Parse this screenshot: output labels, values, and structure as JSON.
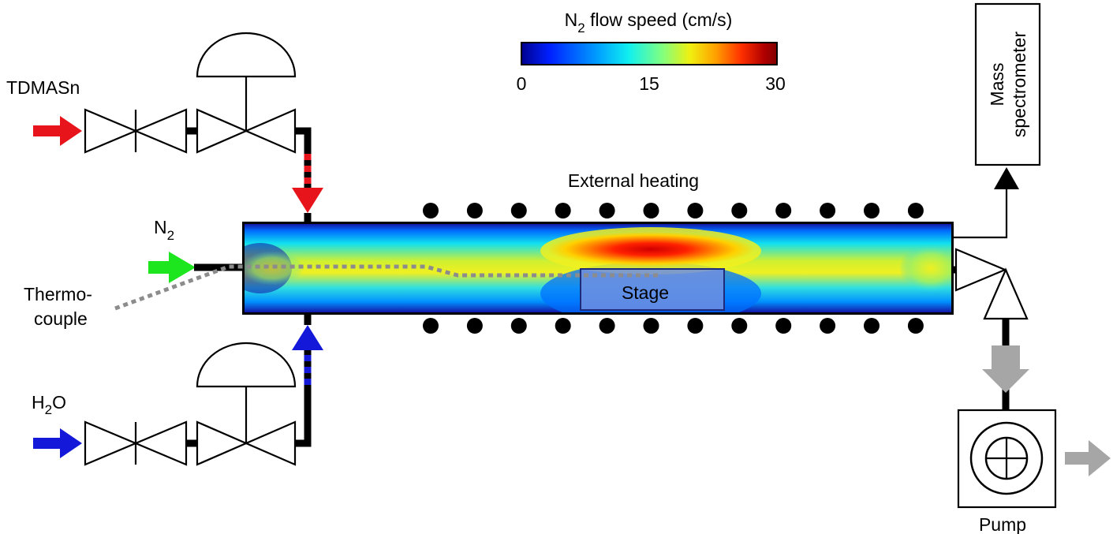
{
  "colorbar": {
    "title_main": "N",
    "title_sub": "2",
    "title_rest": " flow speed (cm/s)",
    "ticks": [
      "0",
      "15",
      "30"
    ],
    "colormap": [
      "#00008f",
      "#0020ff",
      "#00a0ff",
      "#10f0f0",
      "#80ff80",
      "#f0f010",
      "#ffa000",
      "#ff3000",
      "#b00000",
      "#800000"
    ]
  },
  "labels": {
    "tdmasn": "TDMASn",
    "n2_main": "N",
    "n2_sub": "2",
    "h2o_h": "H",
    "h2o_sub": "2",
    "h2o_o": "O",
    "thermo_line1": "Thermo-",
    "thermo_line2": "couple",
    "external_heating": "External heating",
    "stage": "Stage",
    "mass_line1": "Mass",
    "mass_line2": "spectrometer",
    "pump": "Pump"
  },
  "colors": {
    "tdmasn_arrow": "#e8141b",
    "n2_arrow": "#1ee61e",
    "h2o_arrow": "#1418d8",
    "exhaust_arrow": "#a6a6a6",
    "thermocouple": "#8c8c8c",
    "heater_dot": "#000000"
  }
}
